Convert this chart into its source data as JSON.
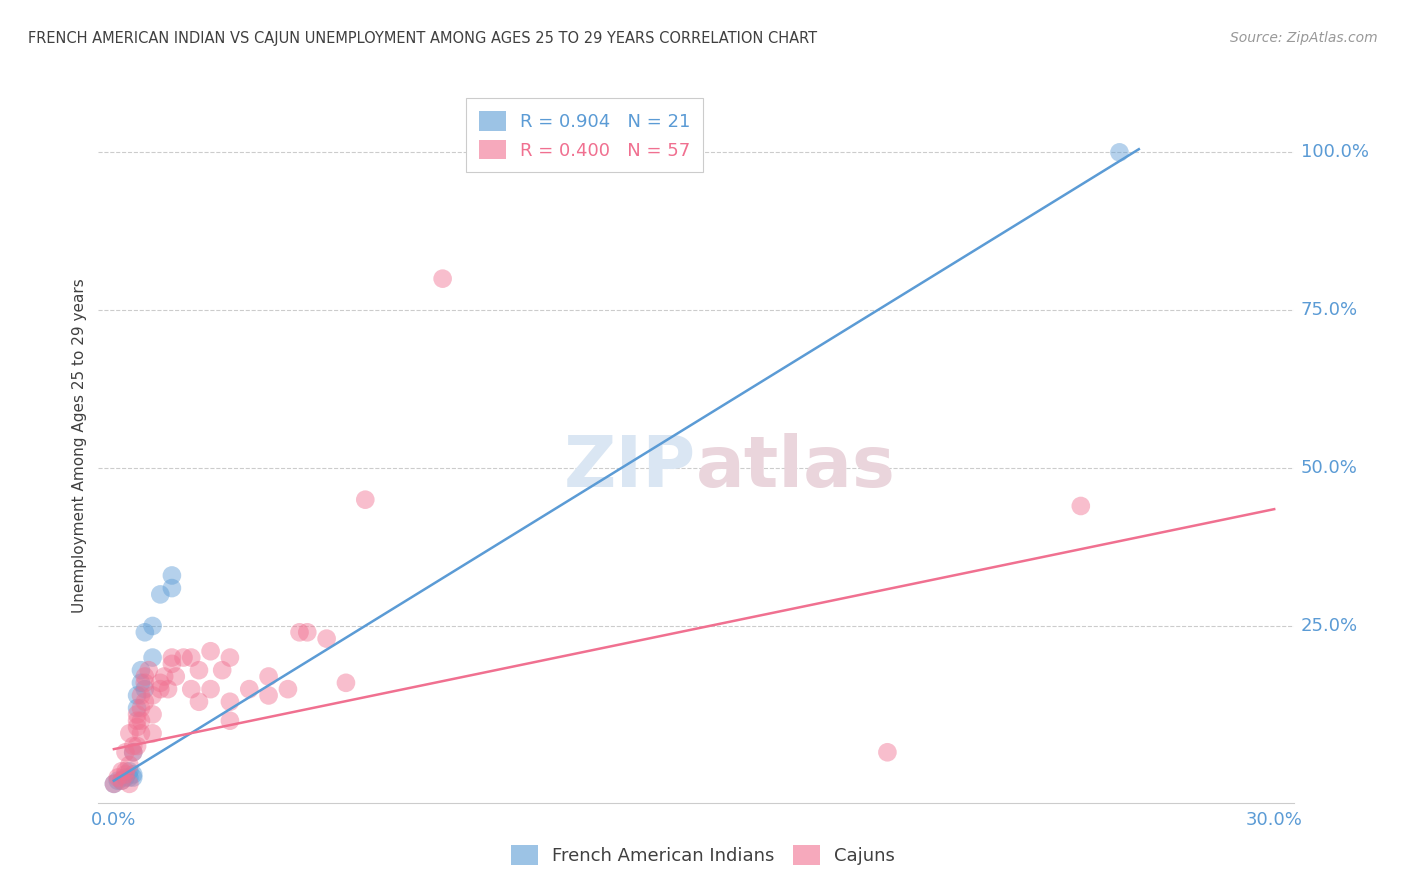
{
  "title": "FRENCH AMERICAN INDIAN VS CAJUN UNEMPLOYMENT AMONG AGES 25 TO 29 YEARS CORRELATION CHART",
  "source": "Source: ZipAtlas.com",
  "ylabel": "Unemployment Among Ages 25 to 29 years",
  "right_yticks": [
    "100.0%",
    "75.0%",
    "50.0%",
    "25.0%"
  ],
  "right_ytick_vals": [
    1.0,
    0.75,
    0.5,
    0.25
  ],
  "legend1_r": "0.904",
  "legend1_n": "21",
  "legend2_r": "0.400",
  "legend2_n": "57",
  "blue_color": "#5b9bd5",
  "pink_color": "#f07090",
  "title_color": "#404040",
  "axis_label_color": "#5b9bd5",
  "source_color": "#999999",
  "french_indian_points": [
    [
      0.0,
      0.0
    ],
    [
      0.001,
      0.005
    ],
    [
      0.002,
      0.005
    ],
    [
      0.003,
      0.01
    ],
    [
      0.004,
      0.01
    ],
    [
      0.004,
      0.02
    ],
    [
      0.005,
      0.01
    ],
    [
      0.005,
      0.015
    ],
    [
      0.005,
      0.05
    ],
    [
      0.006,
      0.12
    ],
    [
      0.006,
      0.14
    ],
    [
      0.007,
      0.16
    ],
    [
      0.007,
      0.18
    ],
    [
      0.008,
      0.15
    ],
    [
      0.008,
      0.24
    ],
    [
      0.01,
      0.2
    ],
    [
      0.01,
      0.25
    ],
    [
      0.012,
      0.3
    ],
    [
      0.015,
      0.31
    ],
    [
      0.015,
      0.33
    ],
    [
      0.26,
      1.0
    ]
  ],
  "cajun_points": [
    [
      0.0,
      0.0
    ],
    [
      0.001,
      0.01
    ],
    [
      0.002,
      0.02
    ],
    [
      0.002,
      0.005
    ],
    [
      0.003,
      0.015
    ],
    [
      0.003,
      0.02
    ],
    [
      0.003,
      0.05
    ],
    [
      0.004,
      0.08
    ],
    [
      0.004,
      0.0
    ],
    [
      0.004,
      0.03
    ],
    [
      0.005,
      0.05
    ],
    [
      0.005,
      0.06
    ],
    [
      0.006,
      0.06
    ],
    [
      0.006,
      0.09
    ],
    [
      0.006,
      0.1
    ],
    [
      0.006,
      0.11
    ],
    [
      0.007,
      0.08
    ],
    [
      0.007,
      0.1
    ],
    [
      0.007,
      0.12
    ],
    [
      0.007,
      0.14
    ],
    [
      0.008,
      0.13
    ],
    [
      0.008,
      0.16
    ],
    [
      0.008,
      0.17
    ],
    [
      0.009,
      0.18
    ],
    [
      0.01,
      0.08
    ],
    [
      0.01,
      0.11
    ],
    [
      0.01,
      0.14
    ],
    [
      0.012,
      0.15
    ],
    [
      0.012,
      0.16
    ],
    [
      0.013,
      0.17
    ],
    [
      0.014,
      0.15
    ],
    [
      0.015,
      0.19
    ],
    [
      0.015,
      0.2
    ],
    [
      0.016,
      0.17
    ],
    [
      0.018,
      0.2
    ],
    [
      0.02,
      0.15
    ],
    [
      0.02,
      0.2
    ],
    [
      0.022,
      0.13
    ],
    [
      0.022,
      0.18
    ],
    [
      0.025,
      0.21
    ],
    [
      0.025,
      0.15
    ],
    [
      0.028,
      0.18
    ],
    [
      0.03,
      0.13
    ],
    [
      0.03,
      0.1
    ],
    [
      0.03,
      0.2
    ],
    [
      0.035,
      0.15
    ],
    [
      0.04,
      0.17
    ],
    [
      0.04,
      0.14
    ],
    [
      0.045,
      0.15
    ],
    [
      0.048,
      0.24
    ],
    [
      0.05,
      0.24
    ],
    [
      0.055,
      0.23
    ],
    [
      0.06,
      0.16
    ],
    [
      0.065,
      0.45
    ],
    [
      0.085,
      0.8
    ],
    [
      0.2,
      0.05
    ],
    [
      0.25,
      0.44
    ]
  ],
  "blue_line_x": [
    0.0,
    0.265
  ],
  "blue_line_y": [
    0.005,
    1.005
  ],
  "pink_line_x": [
    0.0,
    0.3
  ],
  "pink_line_y": [
    0.055,
    0.435
  ],
  "xmin": -0.004,
  "xmax": 0.305,
  "ymin": -0.03,
  "ymax": 1.1
}
